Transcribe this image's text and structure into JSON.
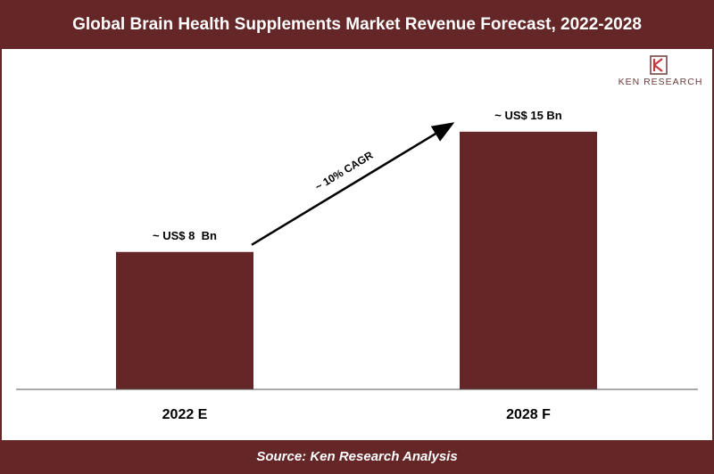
{
  "header": {
    "title": "Global Brain Health Supplements Market Revenue Forecast, 2022-2028"
  },
  "footer": {
    "source": "Source: Ken Research Analysis"
  },
  "logo": {
    "text": "KEN RESEARCH",
    "icon": "ken-research-logo-icon"
  },
  "colors": {
    "bar": "#642626",
    "band": "#642626",
    "text": "#000000",
    "band_text": "#ffffff"
  },
  "chart_data": {
    "type": "bar",
    "categories": [
      "2022 E",
      "2028 F"
    ],
    "values": [
      8,
      15
    ],
    "data_labels": [
      "~ US$ 8  Bn",
      "~ US$ 15 Bn"
    ],
    "ylim": [
      0,
      18
    ],
    "grid": false,
    "annotations": [
      {
        "text": "~ 10% CAGR",
        "from_category": "2022 E",
        "to_category": "2028 F"
      }
    ]
  }
}
